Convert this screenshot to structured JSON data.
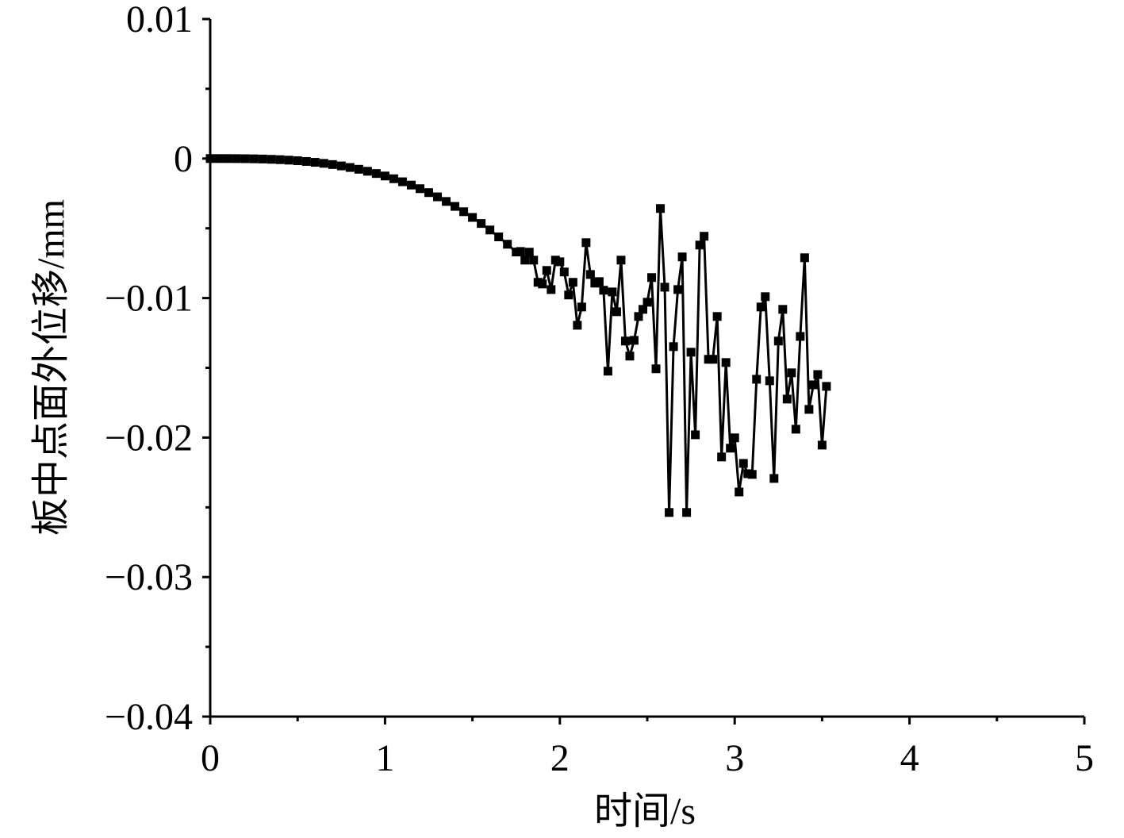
{
  "chart_data": {
    "type": "line",
    "marker": "square",
    "color": "#000000",
    "x_label": "时间/s",
    "y_label": "板中点面外位移/mm",
    "xlim": [
      0,
      5
    ],
    "xticks": [
      0,
      1,
      2,
      3,
      4,
      5
    ],
    "ylim": [
      -0.04,
      0.01
    ],
    "yticks": [
      {
        "value": -0.04,
        "label": "−0.04"
      },
      {
        "value": -0.03,
        "label": "−0.03"
      },
      {
        "value": -0.02,
        "label": "−0.02"
      },
      {
        "value": -0.01,
        "label": "−0.01"
      },
      0,
      0.01
    ],
    "x": [
      0,
      0.05,
      0.1,
      0.15,
      0.2,
      0.25,
      0.3,
      0.35,
      0.4,
      0.45,
      0.5,
      0.55,
      0.6,
      0.65,
      0.7,
      0.75,
      0.8,
      0.85,
      0.9,
      0.95,
      1,
      1.05,
      1.1,
      1.15,
      1.2,
      1.25,
      1.3,
      1.35,
      1.4,
      1.45,
      1.5,
      1.55,
      1.6,
      1.65,
      1.7,
      1.75,
      1.775,
      1.8,
      1.825,
      1.85,
      1.875,
      1.9,
      1.925,
      1.95,
      1.975,
      2,
      2.025,
      2.05,
      2.075,
      2.1,
      2.125,
      2.15,
      2.175,
      2.2,
      2.225,
      2.25,
      2.275,
      2.3,
      2.325,
      2.35,
      2.375,
      2.4,
      2.425,
      2.45,
      2.475,
      2.5,
      2.525,
      2.55,
      2.575,
      2.6,
      2.625,
      2.65,
      2.675,
      2.7,
      2.725,
      2.75,
      2.775,
      2.8,
      2.825,
      2.85,
      2.875,
      2.9,
      2.925,
      2.95,
      2.975,
      3,
      3.025,
      3.05,
      3.075,
      3.1,
      3.125,
      3.15,
      3.175,
      3.2,
      3.225,
      3.25,
      3.275,
      3.3,
      3.325,
      3.35,
      3.375,
      3.4,
      3.425,
      3.45,
      3.475,
      3.5,
      3.525
    ],
    "values": [
      0,
      0,
      -1e-06,
      -4e-06,
      -1e-05,
      -2e-05,
      -3.4e-05,
      -5.4e-05,
      -8e-05,
      -0.000114,
      -0.000156,
      -0.000208,
      -0.00027,
      -0.000343,
      -0.000429,
      -0.000527,
      -0.00064,
      -0.000768,
      -0.000911,
      -0.001072,
      -0.00125,
      -0.001447,
      -0.001664,
      -0.001901,
      -0.00216,
      -0.002441,
      -0.002746,
      -0.003075,
      -0.00343,
      -0.003811,
      -0.004219,
      -0.004654,
      -0.00512,
      -0.005615,
      -0.006141,
      -0.006699,
      -0.00666,
      -0.00728,
      -0.00671,
      -0.00728,
      -0.00887,
      -0.00899,
      -0.00802,
      -0.00939,
      -0.00728,
      -0.0074,
      -0.00813,
      -0.00978,
      -0.00887,
      -0.01195,
      -0.01064,
      -0.00603,
      -0.00831,
      -0.00893,
      -0.00882,
      -0.00944,
      -0.01524,
      -0.00956,
      -0.01098,
      -0.00728,
      -0.01308,
      -0.01416,
      -0.01303,
      -0.01132,
      -0.01081,
      -0.0103,
      -0.00853,
      -0.01507,
      -0.00358,
      -0.00922,
      -0.02537,
      -0.01348,
      -0.00939,
      -0.00705,
      -0.02537,
      -0.01388,
      -0.0198,
      -0.0062,
      -0.00557,
      -0.01439,
      -0.01439,
      -0.01132,
      -0.02139,
      -0.01462,
      -0.02076,
      -0.02002,
      -0.0239,
      -0.02185,
      -0.02259,
      -0.02264,
      -0.01582,
      -0.01064,
      -0.0099,
      -0.01593,
      -0.02293,
      -0.01308,
      -0.01081,
      -0.01724,
      -0.01536,
      -0.0194,
      -0.01275,
      -0.00711,
      -0.01798,
      -0.01622,
      -0.01548,
      -0.02054,
      -0.01633
    ]
  }
}
